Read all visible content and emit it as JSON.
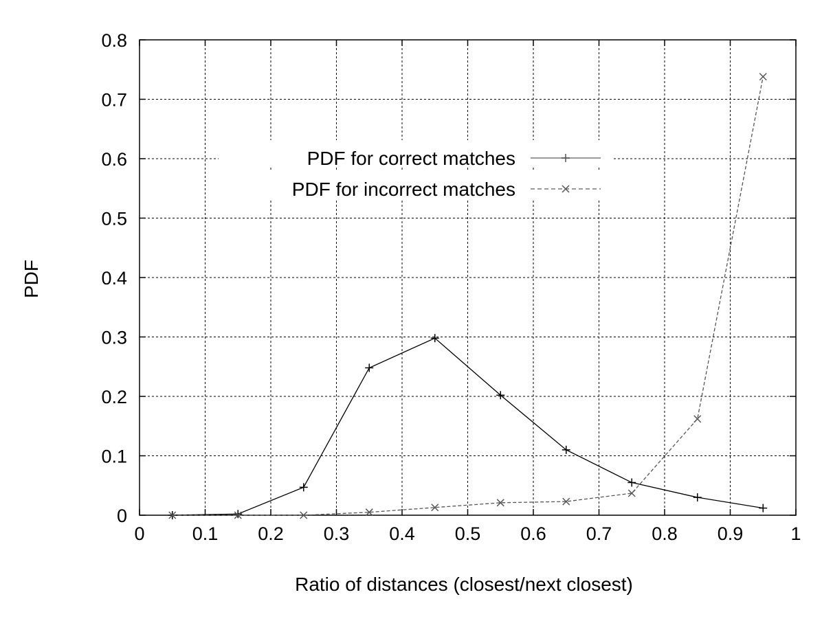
{
  "chart_data": {
    "type": "line",
    "title": "",
    "xlabel": "Ratio of distances (closest/next closest)",
    "ylabel": "PDF",
    "xlim": [
      0,
      1
    ],
    "ylim": [
      0,
      0.8
    ],
    "xticks": [
      0,
      0.1,
      0.2,
      0.3,
      0.4,
      0.5,
      0.6,
      0.7,
      0.8,
      0.9,
      1
    ],
    "xtick_labels": [
      "0",
      "0.1",
      "0.2",
      "0.3",
      "0.4",
      "0.5",
      "0.6",
      "0.7",
      "0.8",
      "0.9",
      "1"
    ],
    "yticks": [
      0,
      0.1,
      0.2,
      0.3,
      0.4,
      0.5,
      0.6,
      0.7,
      0.8
    ],
    "ytick_labels": [
      "0",
      "0.1",
      "0.2",
      "0.3",
      "0.4",
      "0.5",
      "0.6",
      "0.7",
      "0.8"
    ],
    "grid": true,
    "legend_position": "upper-center",
    "series": [
      {
        "name": "PDF for correct matches",
        "line_style": "solid",
        "marker": "plus",
        "color": "#000000",
        "legend_color": "#999999",
        "x": [
          0.05,
          0.15,
          0.25,
          0.35,
          0.45,
          0.55,
          0.65,
          0.75,
          0.85,
          0.95
        ],
        "y": [
          0.0,
          0.002,
          0.047,
          0.248,
          0.298,
          0.202,
          0.11,
          0.055,
          0.03,
          0.012
        ]
      },
      {
        "name": "PDF for incorrect matches",
        "line_style": "dashed",
        "marker": "cross",
        "color": "#555555",
        "legend_color": "#999999",
        "x": [
          0.05,
          0.15,
          0.25,
          0.35,
          0.45,
          0.55,
          0.65,
          0.75,
          0.85,
          0.95
        ],
        "y": [
          0.0,
          0.0,
          0.0,
          0.005,
          0.013,
          0.021,
          0.023,
          0.037,
          0.162,
          0.738
        ]
      }
    ]
  }
}
